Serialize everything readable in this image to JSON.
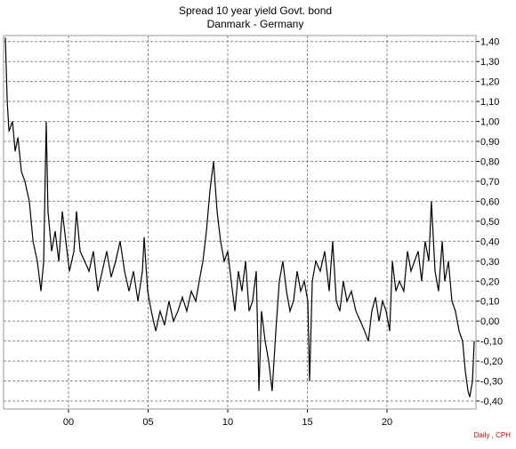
{
  "chart_data": {
    "type": "line",
    "title": "Spread 10 year yield Govt. bond",
    "subtitle": "Danmark - Germany",
    "note": "Daily , CPH",
    "color": "#000000",
    "grid": true,
    "xlim": [
      1995.92,
      2025.59
    ],
    "xticks": [
      {
        "value": 2000,
        "label": "00"
      },
      {
        "value": 2005,
        "label": "05"
      },
      {
        "value": 2010,
        "label": "10"
      },
      {
        "value": 2015,
        "label": "15"
      },
      {
        "value": 2020,
        "label": "20"
      }
    ],
    "ylim": [
      -0.44,
      1.43
    ],
    "yticks": [
      {
        "value": 1.4,
        "label": "1,40"
      },
      {
        "value": 1.3,
        "label": "1,30"
      },
      {
        "value": 1.2,
        "label": "1,20"
      },
      {
        "value": 1.1,
        "label": "1,10"
      },
      {
        "value": 1.0,
        "label": "1,00"
      },
      {
        "value": 0.9,
        "label": "0,90"
      },
      {
        "value": 0.8,
        "label": "0,80"
      },
      {
        "value": 0.7,
        "label": "0,70"
      },
      {
        "value": 0.6,
        "label": "0,60"
      },
      {
        "value": 0.5,
        "label": "0,50"
      },
      {
        "value": 0.4,
        "label": "0,40"
      },
      {
        "value": 0.3,
        "label": "0,30"
      },
      {
        "value": 0.2,
        "label": "0,20"
      },
      {
        "value": 0.1,
        "label": "0,10"
      },
      {
        "value": 0,
        "label": "0,00"
      },
      {
        "value": -0.1,
        "label": "-0,10"
      },
      {
        "value": -0.2,
        "label": "-0,20"
      },
      {
        "value": -0.3,
        "label": "-0,30"
      },
      {
        "value": -0.4,
        "label": "-0,40"
      }
    ],
    "x": [
      1996.03,
      1996.15,
      1996.26,
      1996.48,
      1996.65,
      1996.82,
      1997.04,
      1997.26,
      1997.54,
      1997.77,
      1998.04,
      1998.27,
      1998.44,
      1998.6,
      1998.71,
      1998.94,
      1999.16,
      1999.39,
      1999.61,
      1999.83,
      2000.06,
      2000.34,
      2000.5,
      2000.73,
      2001.01,
      2001.29,
      2001.56,
      2001.84,
      2002.12,
      2002.4,
      2002.68,
      2002.96,
      2003.24,
      2003.52,
      2003.8,
      2004.08,
      2004.36,
      2004.64,
      2004.75,
      2004.97,
      2005.2,
      2005.48,
      2005.75,
      2006.03,
      2006.31,
      2006.59,
      2006.87,
      2007.15,
      2007.43,
      2007.71,
      2007.99,
      2008.21,
      2008.44,
      2008.66,
      2008.88,
      2009.11,
      2009.33,
      2009.55,
      2009.78,
      2010.0,
      2010.22,
      2010.45,
      2010.67,
      2010.89,
      2011.12,
      2011.34,
      2011.56,
      2011.79,
      2011.96,
      2012.12,
      2012.35,
      2012.57,
      2012.79,
      2013.02,
      2013.24,
      2013.46,
      2013.69,
      2013.91,
      2014.13,
      2014.36,
      2014.58,
      2014.81,
      2015.03,
      2015.14,
      2015.31,
      2015.53,
      2015.81,
      2016.09,
      2016.37,
      2016.59,
      2016.82,
      2017.04,
      2017.26,
      2017.49,
      2017.77,
      2018.05,
      2018.33,
      2018.6,
      2018.83,
      2019.05,
      2019.28,
      2019.5,
      2019.72,
      2019.95,
      2020.17,
      2020.34,
      2020.56,
      2020.78,
      2021.06,
      2021.29,
      2021.51,
      2021.73,
      2021.96,
      2022.18,
      2022.4,
      2022.63,
      2022.79,
      2023.02,
      2023.24,
      2023.47,
      2023.63,
      2023.86,
      2024.08,
      2024.3,
      2024.53,
      2024.75,
      2024.92,
      2025.09,
      2025.2,
      2025.37,
      2025.48
    ],
    "values": [
      1.42,
      1.1,
      0.95,
      1.0,
      0.85,
      0.92,
      0.75,
      0.7,
      0.6,
      0.4,
      0.3,
      0.15,
      0.3,
      1.0,
      0.55,
      0.35,
      0.45,
      0.3,
      0.55,
      0.4,
      0.25,
      0.35,
      0.55,
      0.35,
      0.3,
      0.25,
      0.35,
      0.15,
      0.25,
      0.35,
      0.22,
      0.3,
      0.4,
      0.25,
      0.15,
      0.25,
      0.1,
      0.25,
      0.42,
      0.15,
      0.05,
      -0.05,
      0.05,
      -0.02,
      0.1,
      0.0,
      0.05,
      0.12,
      0.05,
      0.15,
      0.1,
      0.2,
      0.3,
      0.45,
      0.65,
      0.8,
      0.55,
      0.4,
      0.3,
      0.35,
      0.2,
      0.05,
      0.25,
      0.15,
      0.3,
      0.05,
      0.1,
      0.25,
      -0.35,
      0.05,
      -0.1,
      -0.2,
      -0.35,
      -0.05,
      0.2,
      0.3,
      0.15,
      0.05,
      0.1,
      0.25,
      0.15,
      0.2,
      0.1,
      -0.3,
      0.2,
      0.3,
      0.25,
      0.35,
      0.15,
      0.4,
      0.1,
      0.05,
      0.2,
      0.1,
      0.15,
      0.05,
      0.0,
      -0.05,
      -0.1,
      0.05,
      0.12,
      0.0,
      0.1,
      0.05,
      -0.05,
      0.3,
      0.15,
      0.2,
      0.15,
      0.35,
      0.25,
      0.3,
      0.35,
      0.2,
      0.4,
      0.3,
      0.6,
      0.25,
      0.15,
      0.4,
      0.2,
      0.3,
      0.1,
      0.05,
      -0.05,
      -0.1,
      -0.25,
      -0.35,
      -0.38,
      -0.3,
      -0.1
    ]
  }
}
